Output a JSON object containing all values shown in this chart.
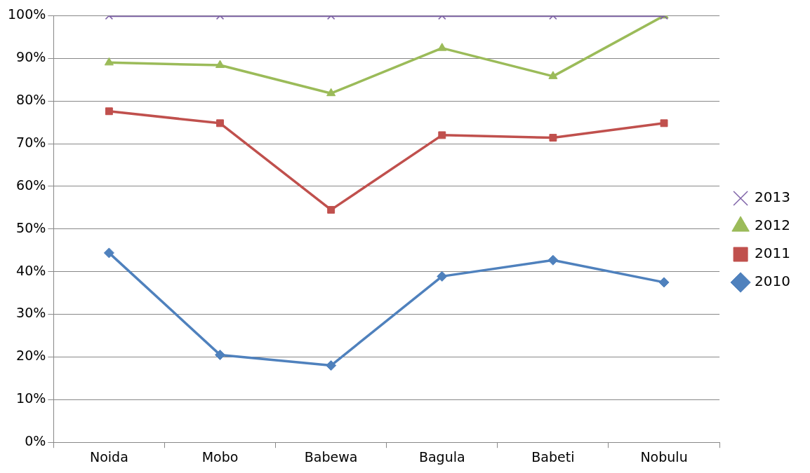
{
  "chart_data": {
    "type": "line",
    "categories": [
      "Noida",
      "Mobo",
      "Babewa",
      "Bagula",
      "Babeti",
      "Nobulu"
    ],
    "series": [
      {
        "name": "2013",
        "color": "#7f63a8",
        "marker": "cross",
        "values": [
          100,
          100,
          100,
          100,
          100,
          100
        ]
      },
      {
        "name": "2012",
        "color": "#9bbb59",
        "marker": "triangle",
        "values": [
          89,
          88.4,
          81.8,
          92.4,
          85.8,
          100
        ]
      },
      {
        "name": "2011",
        "color": "#c0504d",
        "marker": "square",
        "values": [
          77.6,
          74.8,
          54.5,
          72,
          71.4,
          74.8
        ]
      },
      {
        "name": "2010",
        "color": "#4f81bd",
        "marker": "diamond",
        "values": [
          44.4,
          20.5,
          18,
          38.9,
          42.7,
          37.5
        ]
      }
    ],
    "ylim": [
      0,
      100
    ],
    "yticks": [
      {
        "value": 0,
        "label": "0%"
      },
      {
        "value": 10,
        "label": "10%"
      },
      {
        "value": 20,
        "label": "20%"
      },
      {
        "value": 30,
        "label": "30%"
      },
      {
        "value": 40,
        "label": "40%"
      },
      {
        "value": 50,
        "label": "50%"
      },
      {
        "value": 60,
        "label": "60%"
      },
      {
        "value": 70,
        "label": "70%"
      },
      {
        "value": 80,
        "label": "80%"
      },
      {
        "value": 90,
        "label": "90%"
      },
      {
        "value": 100,
        "label": "100%"
      }
    ],
    "grid": "y",
    "legend": "right",
    "line_style": "solid"
  }
}
